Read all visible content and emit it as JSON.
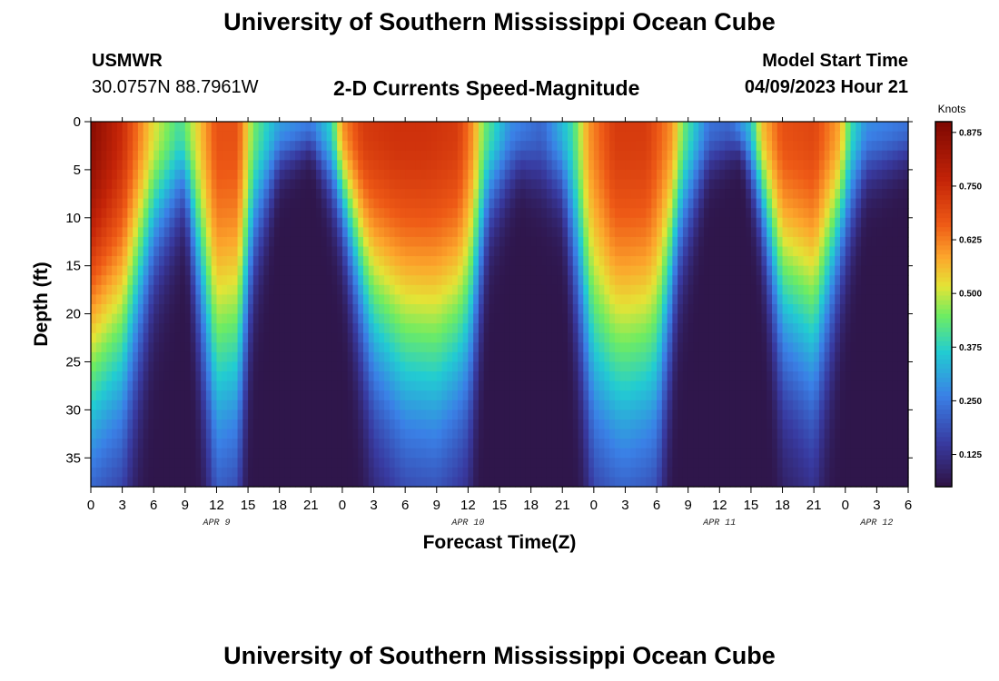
{
  "page": {
    "title": "University of Southern Mississippi Ocean Cube",
    "bottom_title": "University of Southern Mississippi Ocean Cube",
    "station": "USMWR",
    "coordinates": "30.0757N  88.7961W",
    "plot_title": "2-D Currents Speed-Magnitude",
    "model_start_label": "Model Start Time",
    "model_start_value": "04/09/2023 Hour 21"
  },
  "chart_data": {
    "type": "heatmap",
    "title": "2-D Currents Speed-Magnitude",
    "xlabel": "Forecast Time(Z)",
    "ylabel": "Depth (ft)",
    "x_unit": "hours since 2023-04-09 00Z",
    "xlim": [
      0,
      78
    ],
    "ylim": [
      0,
      38
    ],
    "x_tick_values": [
      0,
      3,
      6,
      9,
      12,
      15,
      18,
      21,
      24,
      27,
      30,
      33,
      36,
      39,
      42,
      45,
      48,
      51,
      54,
      57,
      60,
      63,
      66,
      69,
      72,
      75,
      78
    ],
    "x_tick_labels": [
      "0",
      "3",
      "6",
      "9",
      "12",
      "15",
      "18",
      "21",
      "0",
      "3",
      "6",
      "9",
      "12",
      "15",
      "18",
      "21",
      "0",
      "3",
      "6",
      "9",
      "12",
      "15",
      "18",
      "21",
      "0",
      "3",
      "6"
    ],
    "y_tick_values": [
      0,
      5,
      10,
      15,
      20,
      25,
      30,
      35
    ],
    "y_tick_labels": [
      "0",
      "5",
      "10",
      "15",
      "20",
      "25",
      "30",
      "35"
    ],
    "date_labels": [
      {
        "hour": 12,
        "label": "APR 9"
      },
      {
        "hour": 36,
        "label": "APR 10"
      },
      {
        "hour": 60,
        "label": "APR 11"
      },
      {
        "hour": 75,
        "label": "APR 12"
      }
    ],
    "colorbar": {
      "label": "Knots",
      "range": [
        0.05,
        0.9
      ],
      "tick_values": [
        0.125,
        0.25,
        0.375,
        0.5,
        0.625,
        0.75,
        0.875
      ],
      "tick_labels": [
        "0.125",
        "0.250",
        "0.375",
        "0.500",
        "0.625",
        "0.750",
        "0.875"
      ]
    },
    "approx_surface_speed_knots_by_hour": [
      [
        0,
        0.88
      ],
      [
        3,
        0.75
      ],
      [
        6,
        0.52
      ],
      [
        8.5,
        0.4
      ],
      [
        10,
        0.52
      ],
      [
        12,
        0.68
      ],
      [
        14,
        0.68
      ],
      [
        15.5,
        0.45
      ],
      [
        18,
        0.3
      ],
      [
        21,
        0.25
      ],
      [
        23,
        0.38
      ],
      [
        24,
        0.6
      ],
      [
        26,
        0.72
      ],
      [
        29,
        0.74
      ],
      [
        32,
        0.74
      ],
      [
        35,
        0.72
      ],
      [
        36.5,
        0.6
      ],
      [
        37.5,
        0.45
      ],
      [
        40,
        0.28
      ],
      [
        43,
        0.22
      ],
      [
        46,
        0.4
      ],
      [
        47.5,
        0.6
      ],
      [
        50,
        0.72
      ],
      [
        53,
        0.72
      ],
      [
        55.5,
        0.6
      ],
      [
        56.5,
        0.45
      ],
      [
        59,
        0.24
      ],
      [
        61,
        0.22
      ],
      [
        63,
        0.35
      ],
      [
        64,
        0.55
      ],
      [
        66,
        0.68
      ],
      [
        69,
        0.7
      ],
      [
        71.5,
        0.58
      ],
      [
        72.5,
        0.4
      ],
      [
        74,
        0.28
      ],
      [
        78,
        0.24
      ]
    ],
    "approx_depth_decay_ft_by_hour": [
      [
        0,
        30
      ],
      [
        3,
        28
      ],
      [
        6,
        14
      ],
      [
        9,
        8
      ],
      [
        12,
        32
      ],
      [
        14,
        30
      ],
      [
        15.5,
        14
      ],
      [
        18,
        5
      ],
      [
        21,
        3
      ],
      [
        24,
        10
      ],
      [
        27,
        24
      ],
      [
        30,
        29
      ],
      [
        33,
        30
      ],
      [
        36,
        26
      ],
      [
        38,
        10
      ],
      [
        41,
        5
      ],
      [
        45,
        8
      ],
      [
        48,
        30
      ],
      [
        51,
        32
      ],
      [
        54,
        30
      ],
      [
        56,
        14
      ],
      [
        59,
        5
      ],
      [
        62,
        3
      ],
      [
        64,
        10
      ],
      [
        66,
        22
      ],
      [
        69,
        26
      ],
      [
        71.5,
        14
      ],
      [
        74,
        6
      ],
      [
        78,
        4
      ]
    ]
  }
}
